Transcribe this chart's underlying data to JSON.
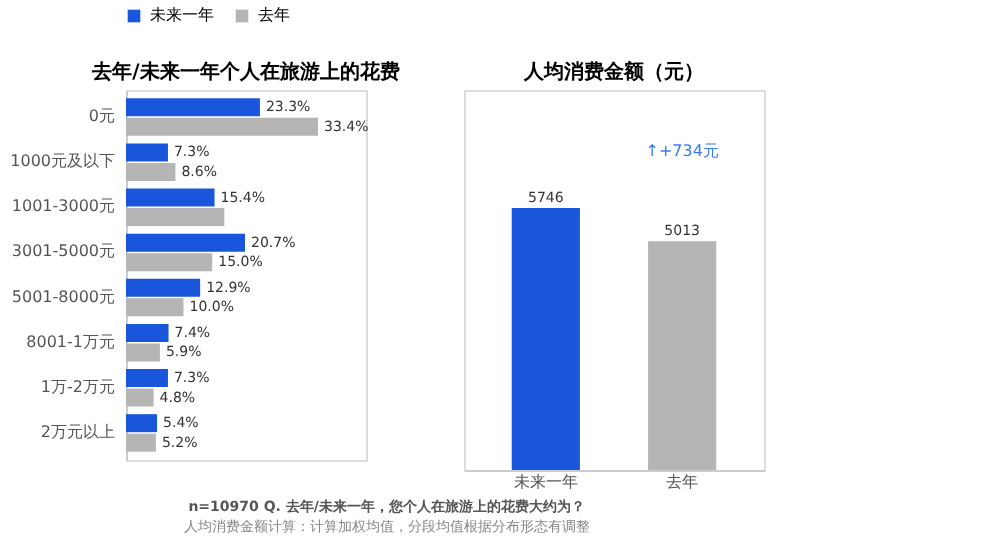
{
  "chart_data": [
    {
      "type": "bar",
      "orientation": "horizontal",
      "title": "去年/未来一年个人在旅游上的花费",
      "categories": [
        "0元",
        "1000元及以下",
        "1001-3000元",
        "3001-5000元",
        "5001-8000元",
        "8001-1万元",
        "1万-2万元",
        "2万元以上"
      ],
      "series": [
        {
          "name": "未来一年",
          "color": "#1a56db",
          "values": [
            23.3,
            7.3,
            15.4,
            20.7,
            12.9,
            7.4,
            7.3,
            5.4
          ],
          "value_labels": [
            "23.3%",
            "7.3%",
            "15.4%",
            "20.7%",
            "12.9%",
            "7.4%",
            "7.3%",
            "5.4%"
          ]
        },
        {
          "name": "去年",
          "color": "#b5b5b5",
          "values": [
            33.4,
            8.6,
            17.1,
            15.0,
            10.0,
            5.9,
            4.8,
            5.2
          ],
          "value_labels": [
            "33.4%",
            "8.6%",
            null,
            "15.0%",
            "10.0%",
            "5.9%",
            "4.8%",
            "5.2%"
          ]
        }
      ],
      "legend": "top",
      "grid": false,
      "annotations": [
        "n=10970 Q. 去年/未来一年，您个人在旅游上的花费大约为？",
        "人均消费金额计算：计算加权均值，分段均值根据分布形态有调整"
      ]
    },
    {
      "type": "bar",
      "title": "人均消费金额（元）",
      "categories": [
        "未来一年",
        "去年"
      ],
      "values": [
        5746,
        5013
      ],
      "colors": [
        "#1a56db",
        "#b5b5b5"
      ],
      "data_labels": true,
      "grid": false,
      "annotations": [
        "↑+734元"
      ]
    }
  ]
}
